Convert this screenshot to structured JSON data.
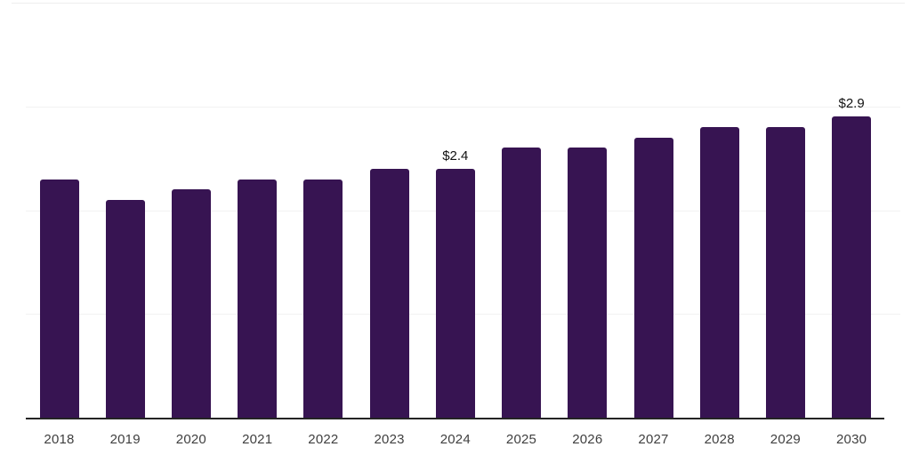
{
  "chart_data": {
    "type": "bar",
    "title": "",
    "xlabel": "",
    "ylabel": "",
    "unit": "$",
    "categories": [
      "2018",
      "2019",
      "2020",
      "2021",
      "2022",
      "2023",
      "2024",
      "2025",
      "2026",
      "2027",
      "2028",
      "2029",
      "2030"
    ],
    "values": [
      2.3,
      2.1,
      2.2,
      2.3,
      2.3,
      2.4,
      2.4,
      2.6,
      2.6,
      2.7,
      2.8,
      2.8,
      2.9
    ],
    "annotations": [
      {
        "category": "2024",
        "text": "$2.4"
      },
      {
        "category": "2030",
        "text": "$2.9"
      }
    ],
    "ylim": [
      0,
      4
    ],
    "gridline_values": [
      1,
      2,
      3,
      4
    ],
    "grid": "horizontal, unlabeled",
    "legend_position": "none",
    "colors": {
      "bar": "#371452",
      "axis": "#242424",
      "tick_label": "#3f3f3f",
      "value_label": "#111111",
      "gridline": "#f2f2f2",
      "gridline_top": "#eeeeee",
      "background": "#ffffff"
    }
  }
}
